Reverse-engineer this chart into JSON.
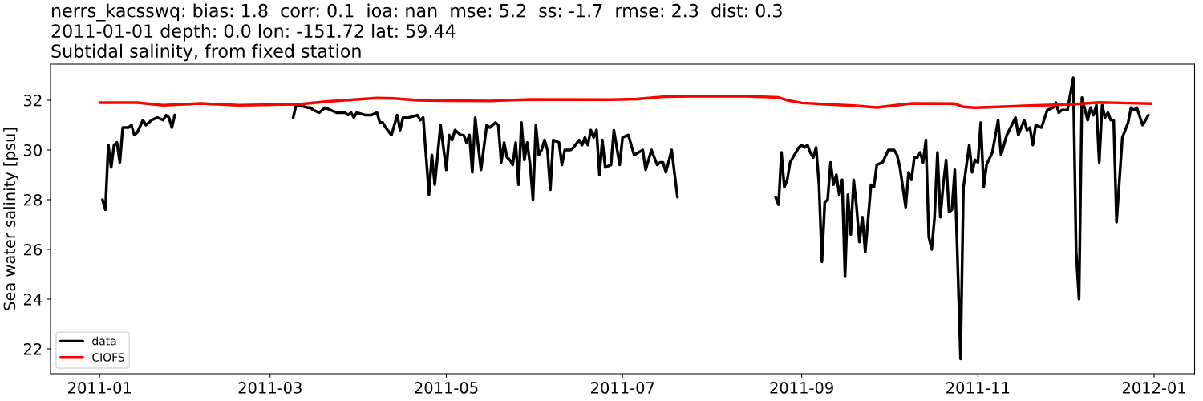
{
  "chart_data": {
    "type": "line",
    "title": "nerrs_kacsswq: bias: 1.8  corr: 0.1  ioa: nan  mse: 5.2  ss: -1.7  rmse: 2.3  dist: 0.3\n2011-01-01 depth: 0.0 lon: -151.72 lat: 59.44\nSubtidal salinity, from fixed station",
    "ylabel": "Sea water salinity [psu]",
    "xlim": [
      "2010-12-15",
      "2012-01-15"
    ],
    "xticks": [
      "2011-01",
      "2011-03",
      "2011-05",
      "2011-07",
      "2011-09",
      "2011-11",
      "2012-01"
    ],
    "ylim": [
      21.0,
      33.45
    ],
    "yticks": [
      22,
      24,
      26,
      28,
      30,
      32
    ],
    "legend": "bottom left",
    "grid": false,
    "series": [
      {
        "name": "data",
        "color": "#000000",
        "x": [
          "2011-01-02",
          "2011-01-03",
          "2011-01-04",
          "2011-01-05",
          "2011-01-06",
          "2011-01-07",
          "2011-01-08",
          "2011-01-09",
          "2011-01-11",
          "2011-01-12",
          "2011-01-13",
          "2011-01-14",
          "2011-01-16",
          "2011-01-17",
          "2011-01-19",
          "2011-01-21",
          "2011-01-23",
          "2011-01-24",
          "2011-01-25",
          "2011-01-26",
          "2011-01-27",
          "2011-02-15",
          "2011-03-09",
          "2011-03-10",
          "2011-03-11",
          "2011-03-14",
          "2011-03-15",
          "2011-03-16",
          "2011-03-18",
          "2011-03-20",
          "2011-03-24",
          "2011-03-27",
          "2011-03-28",
          "2011-03-29",
          "2011-03-30",
          "2011-03-31",
          "2011-04-03",
          "2011-04-05",
          "2011-04-07",
          "2011-04-08",
          "2011-04-09",
          "2011-04-10",
          "2011-04-12",
          "2011-04-14",
          "2011-04-15",
          "2011-04-16",
          "2011-04-18",
          "2011-04-21",
          "2011-04-22",
          "2011-04-23",
          "2011-04-25",
          "2011-04-26",
          "2011-04-27",
          "2011-04-28",
          "2011-04-29",
          "2011-05-01",
          "2011-05-02",
          "2011-05-03",
          "2011-05-04",
          "2011-05-06",
          "2011-05-07",
          "2011-05-08",
          "2011-05-09",
          "2011-05-10",
          "2011-05-11",
          "2011-05-12",
          "2011-05-13",
          "2011-05-15",
          "2011-05-16",
          "2011-05-18",
          "2011-05-19",
          "2011-05-20",
          "2011-05-21",
          "2011-05-22",
          "2011-05-23",
          "2011-05-24",
          "2011-05-25",
          "2011-05-26",
          "2011-05-27",
          "2011-05-28",
          "2011-05-29",
          "2011-05-30",
          "2011-05-31",
          "2011-06-01",
          "2011-06-02",
          "2011-06-03",
          "2011-06-04",
          "2011-06-05",
          "2011-06-06",
          "2011-06-07",
          "2011-06-09",
          "2011-06-10",
          "2011-06-11",
          "2011-06-13",
          "2011-06-14",
          "2011-06-16",
          "2011-06-17",
          "2011-06-18",
          "2011-06-19",
          "2011-06-20",
          "2011-06-21",
          "2011-06-22",
          "2011-06-23",
          "2011-06-24",
          "2011-06-25",
          "2011-06-27",
          "2011-06-28",
          "2011-06-30",
          "2011-07-01",
          "2011-07-03",
          "2011-07-05",
          "2011-07-08",
          "2011-07-09",
          "2011-07-11",
          "2011-07-12",
          "2011-07-13",
          "2011-07-14",
          "2011-07-15",
          "2011-07-16",
          "2011-07-18",
          "2011-07-20",
          "2011-08-05",
          "2011-08-23",
          "2011-08-24",
          "2011-08-25",
          "2011-08-26",
          "2011-08-27",
          "2011-08-28",
          "2011-08-31",
          "2011-09-01",
          "2011-09-02",
          "2011-09-03",
          "2011-09-04",
          "2011-09-05",
          "2011-09-06",
          "2011-09-07",
          "2011-09-08",
          "2011-09-09",
          "2011-09-10",
          "2011-09-11",
          "2011-09-12",
          "2011-09-13",
          "2011-09-14",
          "2011-09-15",
          "2011-09-16",
          "2011-09-17",
          "2011-09-18",
          "2011-09-19",
          "2011-09-20",
          "2011-09-21",
          "2011-09-22",
          "2011-09-23",
          "2011-09-25",
          "2011-09-26",
          "2011-09-27",
          "2011-09-29",
          "2011-10-01",
          "2011-10-03",
          "2011-10-04",
          "2011-10-05",
          "2011-10-07",
          "2011-10-08",
          "2011-10-09",
          "2011-10-10",
          "2011-10-11",
          "2011-10-12",
          "2011-10-13",
          "2011-10-14",
          "2011-10-15",
          "2011-10-16",
          "2011-10-17",
          "2011-10-18",
          "2011-10-19",
          "2011-10-20",
          "2011-10-21",
          "2011-10-22",
          "2011-10-23",
          "2011-10-24",
          "2011-10-26",
          "2011-10-27",
          "2011-10-29",
          "2011-10-30",
          "2011-10-31",
          "2011-11-01",
          "2011-11-02",
          "2011-11-03",
          "2011-11-04",
          "2011-11-06",
          "2011-11-08",
          "2011-11-09",
          "2011-11-11",
          "2011-11-14",
          "2011-11-15",
          "2011-11-17",
          "2011-11-18",
          "2011-11-19",
          "2011-11-20",
          "2011-11-21",
          "2011-11-23",
          "2011-11-25",
          "2011-11-27",
          "2011-11-28",
          "2011-11-29",
          "2011-11-30",
          "2011-12-02",
          "2011-12-04",
          "2011-12-05",
          "2011-12-06",
          "2011-12-07",
          "2011-12-09",
          "2011-12-10",
          "2011-12-11",
          "2011-12-12",
          "2011-12-13",
          "2011-12-14",
          "2011-12-15",
          "2011-12-16",
          "2011-12-17",
          "2011-12-18",
          "2011-12-19",
          "2011-12-21",
          "2011-12-23",
          "2011-12-24",
          "2011-12-25",
          "2011-12-26",
          "2011-12-28",
          "2011-12-29",
          "2011-12-30"
        ],
        "values": [
          28.0,
          27.6,
          30.2,
          29.3,
          30.2,
          30.3,
          29.5,
          30.9,
          30.9,
          31.0,
          30.6,
          30.7,
          31.2,
          31.0,
          31.2,
          31.3,
          31.2,
          31.4,
          31.3,
          30.9,
          31.4,
          null,
          31.3,
          31.8,
          31.8,
          31.7,
          31.7,
          31.6,
          31.5,
          31.7,
          31.5,
          31.5,
          31.4,
          31.5,
          31.3,
          31.5,
          31.4,
          31.4,
          31.5,
          31.1,
          31.1,
          30.9,
          30.6,
          31.4,
          30.8,
          31.3,
          31.3,
          31.4,
          31.2,
          31.3,
          28.2,
          29.8,
          28.6,
          29.8,
          31.0,
          29.2,
          30.6,
          30.4,
          30.8,
          30.6,
          30.6,
          30.3,
          30.6,
          29.1,
          31.3,
          30.2,
          29.2,
          31.0,
          30.9,
          31.1,
          31.0,
          29.5,
          30.3,
          29.7,
          29.6,
          29.4,
          30.3,
          28.6,
          31.1,
          29.6,
          30.3,
          29.4,
          28.0,
          31.0,
          29.8,
          30.0,
          30.4,
          30.0,
          28.4,
          30.4,
          30.3,
          29.4,
          30.0,
          30.0,
          30.1,
          30.4,
          30.2,
          30.5,
          30.2,
          30.8,
          30.5,
          30.8,
          29.0,
          30.4,
          29.3,
          29.4,
          30.8,
          29.4,
          30.5,
          30.6,
          29.8,
          30.0,
          29.2,
          30.0,
          29.7,
          29.4,
          29.5,
          29.5,
          29.1,
          30.0,
          28.1,
          null,
          28.1,
          27.8,
          29.9,
          28.5,
          28.8,
          29.5,
          30.1,
          30.2,
          30.1,
          30.2,
          29.9,
          29.7,
          30.1,
          28.6,
          25.5,
          27.9,
          28.0,
          29.5,
          28.6,
          29.0,
          28.2,
          28.8,
          24.9,
          28.2,
          26.6,
          28.8,
          27.7,
          26.3,
          27.3,
          25.9,
          28.6,
          28.5,
          29.4,
          29.5,
          30.0,
          30.0,
          29.8,
          29.3,
          27.7,
          29.1,
          28.8,
          29.7,
          29.7,
          29.9,
          29.5,
          30.4,
          26.5,
          26.0,
          27.3,
          29.9,
          27.3,
          28.6,
          29.6,
          27.5,
          27.6,
          29.2,
          21.6,
          28.5,
          30.2,
          29.1,
          29.6,
          29.5,
          31.1,
          28.5,
          29.4,
          29.9,
          31.2,
          29.8,
          30.6,
          31.3,
          30.6,
          31.2,
          30.8,
          30.9,
          30.2,
          31.0,
          30.9,
          31.6,
          31.7,
          31.9,
          31.5,
          31.6,
          31.6,
          32.9,
          25.9,
          24.0,
          32.1,
          31.2,
          31.7,
          31.4,
          31.8,
          29.5,
          31.8,
          31.3,
          31.5,
          31.2,
          31.2,
          27.1,
          30.5,
          31.1,
          31.7,
          31.6,
          31.7,
          31.0,
          31.2,
          31.4
        ]
      },
      {
        "name": "CIOFS",
        "color": "#ff0000",
        "x": [
          "2011-01-01",
          "2011-01-14",
          "2011-01-23",
          "2011-02-05",
          "2011-02-18",
          "2011-03-02",
          "2011-03-11",
          "2011-03-21",
          "2011-03-30",
          "2011-04-07",
          "2011-04-13",
          "2011-04-21",
          "2011-05-02",
          "2011-05-16",
          "2011-05-30",
          "2011-06-27",
          "2011-07-06",
          "2011-07-15",
          "2011-07-25",
          "2011-08-13",
          "2011-08-24",
          "2011-08-27",
          "2011-09-01",
          "2011-09-09",
          "2011-09-19",
          "2011-09-27",
          "2011-10-09",
          "2011-10-24",
          "2011-10-27",
          "2011-10-31",
          "2011-11-17",
          "2011-12-04",
          "2011-12-13",
          "2011-12-21",
          "2011-12-31"
        ],
        "values": [
          31.9,
          31.9,
          31.8,
          31.87,
          31.8,
          31.82,
          31.84,
          31.95,
          32.02,
          32.09,
          32.07,
          32.0,
          31.98,
          31.97,
          32.03,
          32.02,
          32.05,
          32.14,
          32.16,
          32.16,
          32.11,
          32.0,
          31.89,
          31.84,
          31.78,
          31.71,
          31.87,
          31.86,
          31.73,
          31.7,
          31.77,
          31.84,
          31.91,
          31.89,
          31.86
        ]
      }
    ]
  }
}
